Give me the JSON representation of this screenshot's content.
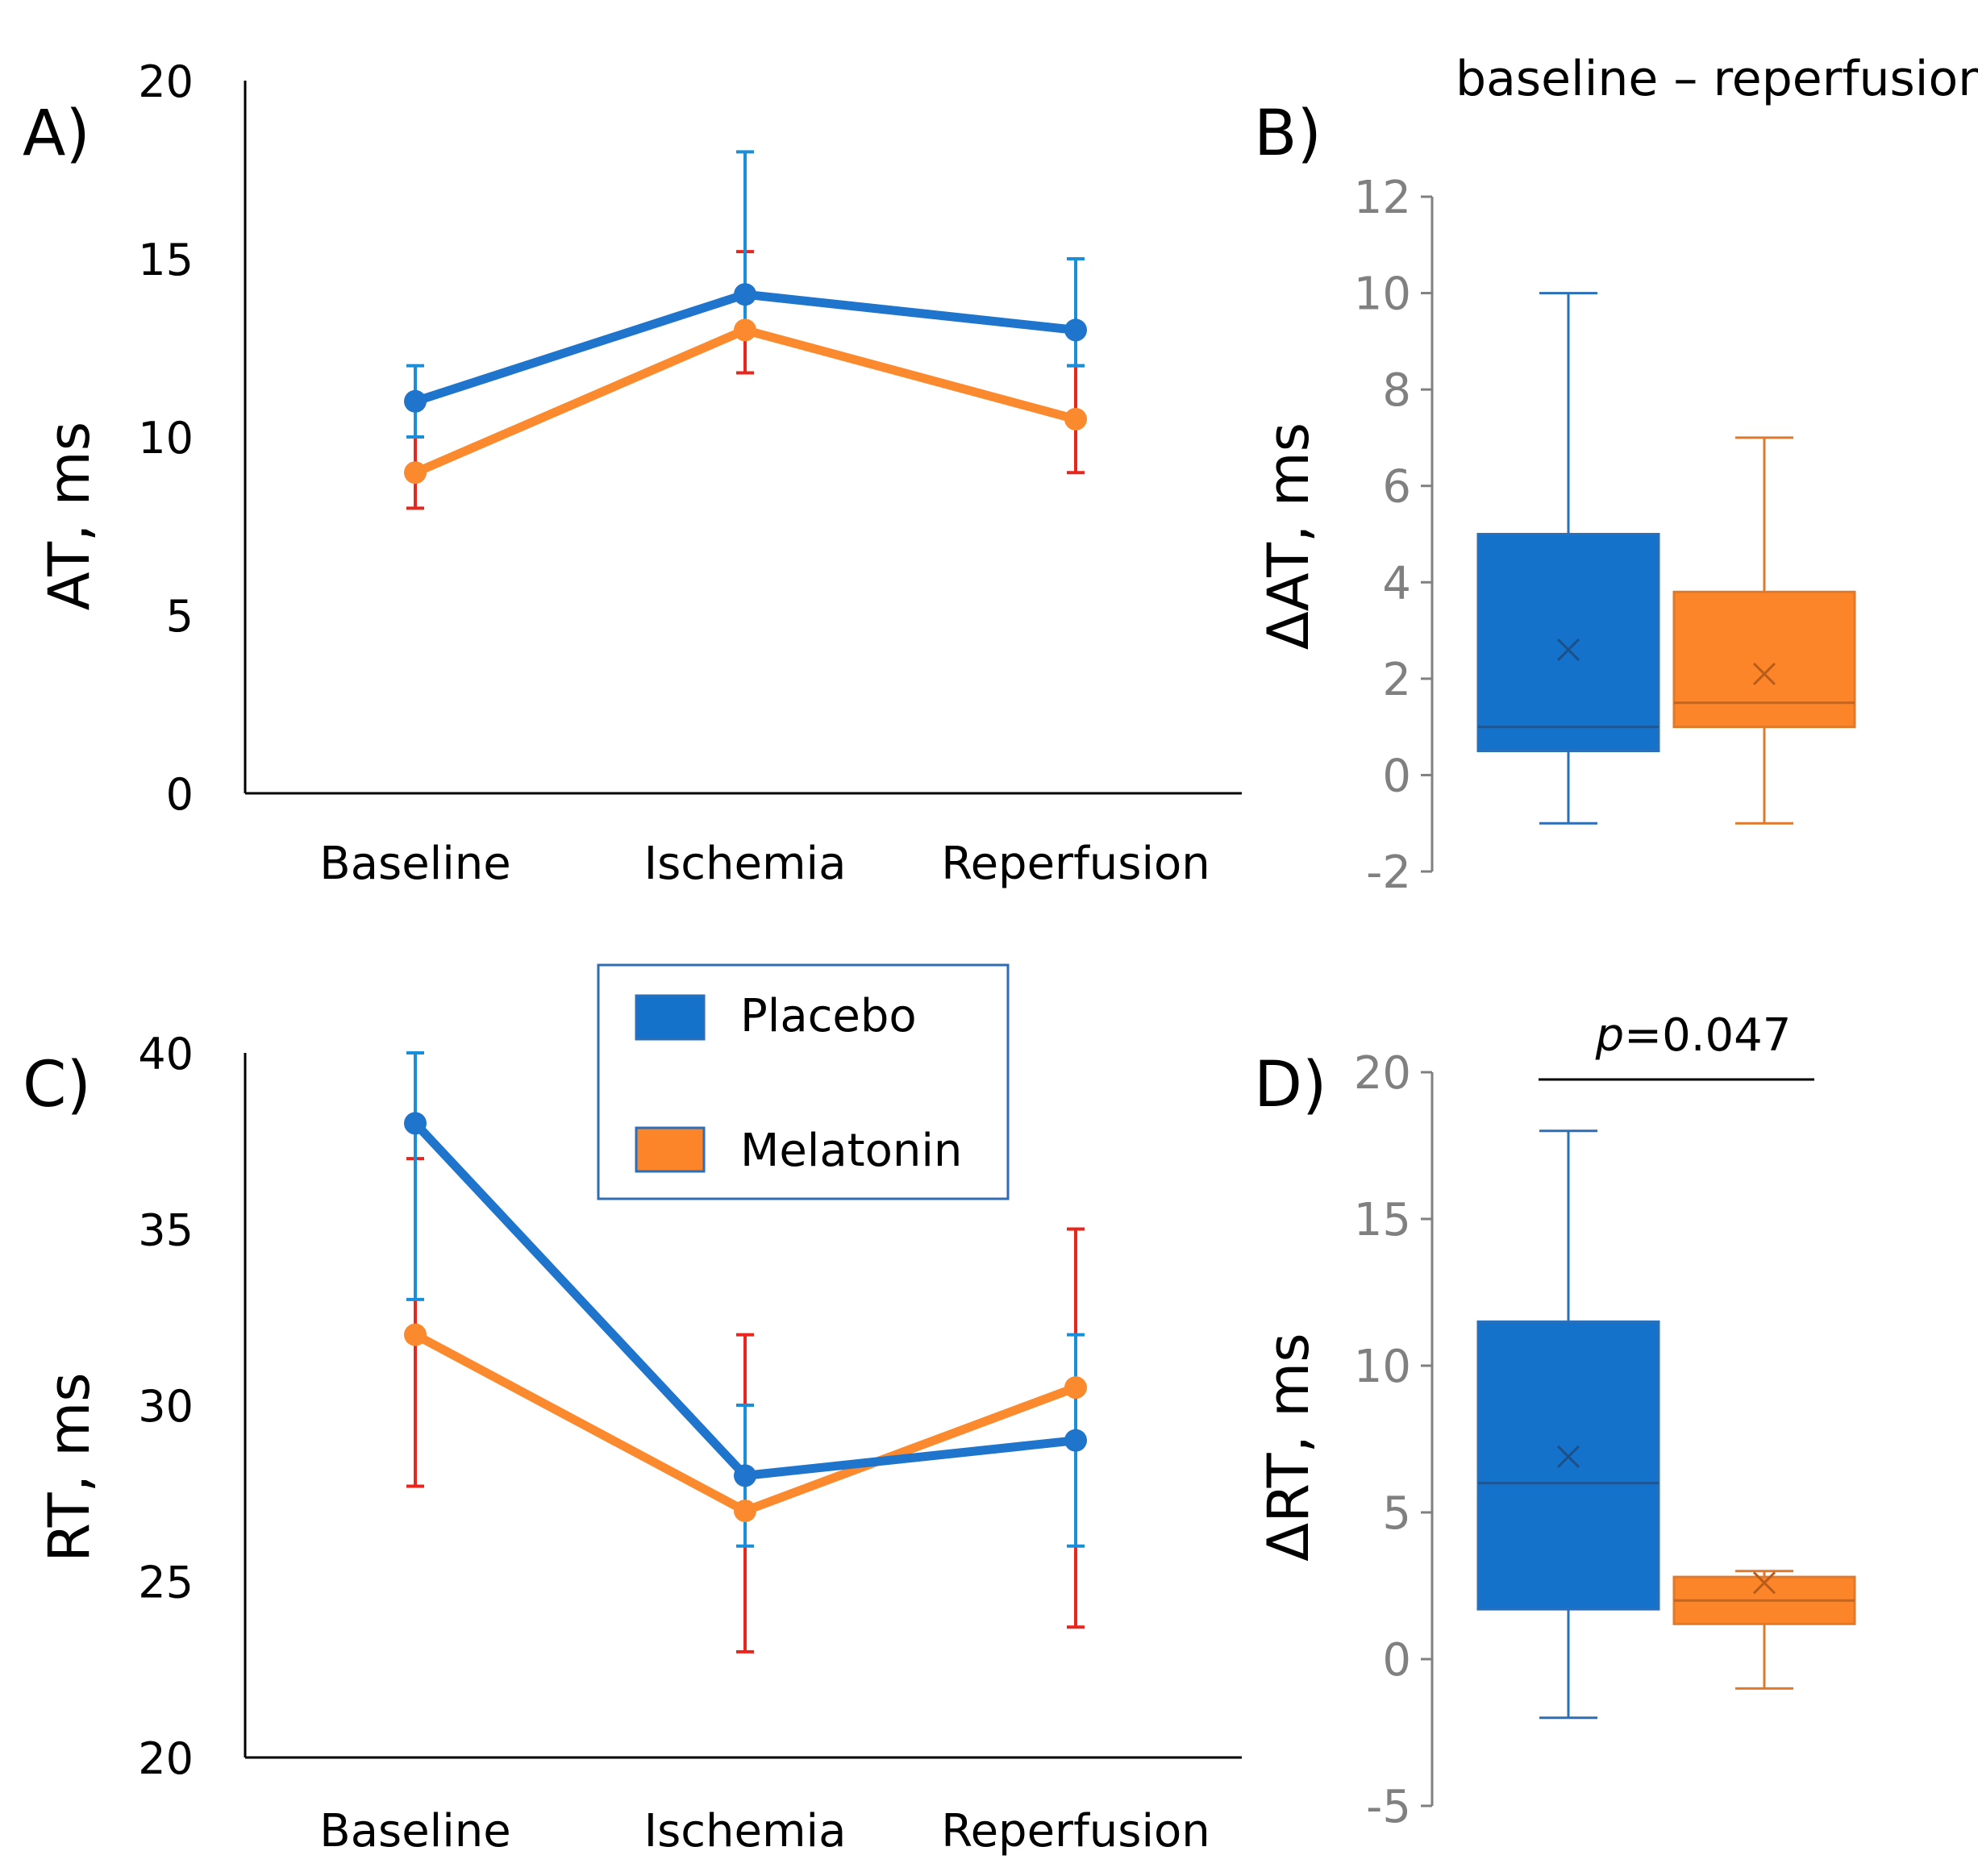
{
  "colors": {
    "placebo": "#1f74cc",
    "placebo_err": "#1a8ed8",
    "melatonin": "#fb8a2e",
    "melatonin_err": "#e8261e",
    "box_placebo": "#1572cb",
    "box_placebo_edge": "#2b6fb8",
    "box_melatonin": "#fb8528",
    "box_melatonin_edge": "#e07a2a",
    "axis_dark": "#000000",
    "axis_gray": "#808080",
    "legend_border": "#2e6db4"
  },
  "legend": {
    "items": [
      "Placebo",
      "Melatonin"
    ]
  },
  "chart_data": [
    {
      "id": "A",
      "panel_label": "A)",
      "type": "line",
      "categories": [
        "Baseline",
        "Ischemia",
        "Reperfusion"
      ],
      "ylabel": "AT, ms",
      "ylim": [
        0,
        20
      ],
      "yticks": [
        "0",
        "5",
        "10",
        "15",
        "20"
      ],
      "series": [
        {
          "name": "Placebo",
          "values": [
            11,
            14,
            13
          ],
          "err_low": [
            10,
            13,
            12
          ],
          "err_high": [
            12,
            18,
            15
          ]
        },
        {
          "name": "Melatonin",
          "values": [
            9,
            13,
            10.5
          ],
          "err_low": [
            8,
            11.8,
            9
          ],
          "err_high": [
            10,
            15.2,
            12
          ]
        }
      ]
    },
    {
      "id": "B",
      "panel_label": "B)",
      "type": "box",
      "title": "baseline – reperfusion",
      "ylabel": "ΔAT, ms",
      "ylim": [
        -2,
        12
      ],
      "yticks": [
        "-2",
        "0",
        "2",
        "4",
        "6",
        "8",
        "10",
        "12"
      ],
      "boxes": [
        {
          "name": "Placebo",
          "whisker_low": -1,
          "q1": 0.5,
          "median": 1,
          "q3": 5,
          "whisker_high": 10,
          "mean": 2.6
        },
        {
          "name": "Melatonin",
          "whisker_low": -1,
          "q1": 1,
          "median": 1.5,
          "q3": 3.8,
          "whisker_high": 7,
          "mean": 2.1
        }
      ]
    },
    {
      "id": "C",
      "panel_label": "C)",
      "type": "line",
      "categories": [
        "Baseline",
        "Ischemia",
        "Reperfusion"
      ],
      "ylabel": "RT, ms",
      "ylim": [
        20,
        40
      ],
      "yticks": [
        "20",
        "25",
        "30",
        "35",
        "40"
      ],
      "series": [
        {
          "name": "Placebo",
          "values": [
            38,
            28,
            29
          ],
          "err_low": [
            33,
            26,
            26
          ],
          "err_high": [
            40,
            30,
            32
          ]
        },
        {
          "name": "Melatonin",
          "values": [
            32,
            27,
            30.5
          ],
          "err_low": [
            27.7,
            23,
            23.7
          ],
          "err_high": [
            37,
            32,
            35
          ]
        }
      ]
    },
    {
      "id": "D",
      "panel_label": "D)",
      "type": "box",
      "ylabel": "ΔRT, ms",
      "ylim": [
        -5,
        20
      ],
      "yticks": [
        "-5",
        "0",
        "5",
        "10",
        "15",
        "20"
      ],
      "annotation": {
        "p_prefix": "p",
        "p_suffix": "=0.047"
      },
      "boxes": [
        {
          "name": "Placebo",
          "whisker_low": -2,
          "q1": 1.7,
          "median": 6,
          "q3": 11.5,
          "whisker_high": 18,
          "mean": 6.9
        },
        {
          "name": "Melatonin",
          "whisker_low": -1,
          "q1": 1.2,
          "median": 2,
          "q3": 2.8,
          "whisker_high": 3,
          "mean": 2.6
        }
      ]
    }
  ]
}
